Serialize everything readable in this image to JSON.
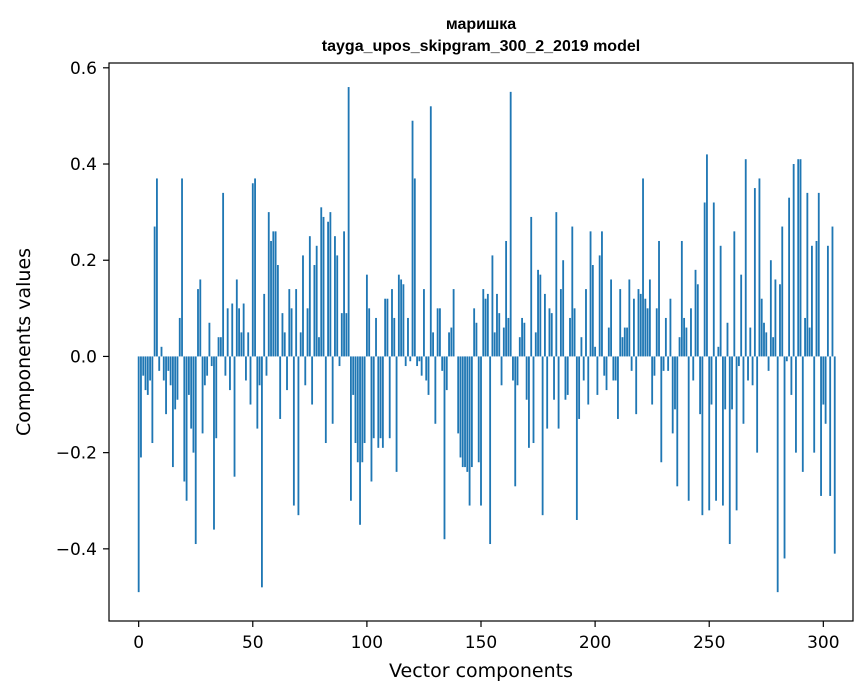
{
  "chart_data": {
    "type": "bar",
    "title_line1": "маришка",
    "title_line2": "tayga_upos_skipgram_300_2_2019 model",
    "xlabel": "Vector components",
    "ylabel": "Components values",
    "xlim": [
      -13,
      313
    ],
    "ylim": [
      -0.55,
      0.61
    ],
    "xticks": [
      0,
      50,
      100,
      150,
      200,
      250,
      300
    ],
    "xtick_labels": [
      "0",
      "50",
      "100",
      "150",
      "200",
      "250",
      "300"
    ],
    "yticks": [
      -0.4,
      -0.2,
      0.0,
      0.2,
      0.4,
      0.6
    ],
    "ytick_labels": [
      "−0.4",
      "−0.2",
      "0.0",
      "0.2",
      "0.4",
      "0.6"
    ],
    "bar_color": "#1f77b4",
    "grid": false,
    "values": [
      -0.49,
      -0.21,
      -0.04,
      -0.07,
      -0.08,
      -0.05,
      -0.18,
      0.27,
      0.37,
      -0.03,
      0.02,
      -0.05,
      -0.12,
      -0.03,
      -0.06,
      -0.23,
      -0.11,
      -0.09,
      0.08,
      0.37,
      -0.26,
      -0.3,
      -0.08,
      -0.15,
      -0.2,
      -0.39,
      0.14,
      0.16,
      -0.16,
      -0.06,
      -0.04,
      0.07,
      -0.02,
      -0.36,
      -0.17,
      0.04,
      0.04,
      0.34,
      -0.04,
      0.1,
      -0.07,
      0.11,
      -0.25,
      0.16,
      0.1,
      0.05,
      0.11,
      -0.05,
      0.05,
      -0.1,
      0.36,
      0.37,
      -0.15,
      -0.06,
      -0.48,
      0.13,
      -0.04,
      0.3,
      0.24,
      0.26,
      0.26,
      0.19,
      -0.13,
      0.09,
      0.05,
      -0.07,
      0.14,
      0.1,
      -0.31,
      0.14,
      -0.33,
      0.05,
      0.21,
      -0.06,
      0.1,
      0.25,
      -0.1,
      0.19,
      0.23,
      0.04,
      0.31,
      0.29,
      -0.18,
      0.28,
      0.3,
      -0.14,
      0.25,
      0.21,
      -0.02,
      0.09,
      0.26,
      0.09,
      0.56,
      -0.3,
      -0.08,
      -0.18,
      -0.22,
      -0.35,
      -0.22,
      -0.18,
      0.17,
      0.1,
      -0.26,
      -0.17,
      0.08,
      -0.19,
      -0.17,
      -0.19,
      0.12,
      0.12,
      -0.17,
      0.14,
      0.08,
      -0.24,
      0.17,
      0.16,
      0.15,
      -0.02,
      0.08,
      -0.01,
      0.49,
      0.37,
      -0.02,
      -0.01,
      -0.04,
      0.14,
      -0.05,
      -0.08,
      0.52,
      0.05,
      -0.14,
      0.1,
      0.1,
      -0.03,
      -0.38,
      -0.07,
      0.05,
      0.06,
      0.14,
      0.0,
      -0.16,
      -0.21,
      -0.23,
      -0.23,
      -0.24,
      -0.31,
      -0.23,
      0.1,
      0.07,
      -0.22,
      -0.31,
      0.14,
      0.12,
      0.13,
      -0.39,
      0.21,
      0.05,
      0.13,
      0.09,
      -0.06,
      0.06,
      0.24,
      0.08,
      0.55,
      -0.05,
      -0.27,
      -0.06,
      0.04,
      0.08,
      0.07,
      -0.09,
      -0.19,
      0.29,
      -0.18,
      0.05,
      0.18,
      0.17,
      -0.33,
      0.13,
      -0.15,
      0.1,
      0.09,
      -0.09,
      0.3,
      -0.15,
      0.14,
      0.2,
      -0.09,
      -0.08,
      0.08,
      0.27,
      0.1,
      -0.34,
      -0.13,
      0.04,
      -0.05,
      0.14,
      -0.1,
      0.26,
      0.19,
      0.02,
      -0.08,
      0.21,
      0.26,
      -0.04,
      -0.07,
      0.06,
      0.16,
      -0.05,
      -0.05,
      -0.13,
      0.14,
      0.04,
      0.06,
      0.06,
      0.16,
      -0.03,
      0.12,
      -0.12,
      0.14,
      0.13,
      0.37,
      0.12,
      0.1,
      0.16,
      -0.1,
      -0.04,
      0.1,
      0.24,
      -0.22,
      -0.03,
      0.08,
      -0.03,
      0.12,
      -0.16,
      -0.11,
      -0.27,
      0.04,
      0.24,
      0.08,
      0.06,
      -0.3,
      0.1,
      -0.05,
      0.18,
      0.15,
      -0.12,
      -0.33,
      0.32,
      0.42,
      -0.32,
      -0.1,
      0.32,
      -0.3,
      0.02,
      0.23,
      -0.31,
      -0.11,
      0.07,
      -0.39,
      -0.11,
      0.26,
      -0.32,
      -0.02,
      0.17,
      -0.14,
      0.41,
      -0.05,
      0.06,
      -0.06,
      0.35,
      -0.2,
      0.37,
      0.12,
      0.07,
      0.05,
      -0.03,
      0.2,
      0.04,
      0.16,
      -0.49,
      0.15,
      0.27,
      -0.42,
      -0.01,
      0.33,
      -0.08,
      0.4,
      -0.2,
      0.41,
      0.41,
      -0.24,
      0.08,
      0.34,
      0.06,
      0.23,
      -0.2,
      0.24,
      0.34,
      -0.29,
      -0.1,
      -0.14,
      0.23,
      -0.29,
      0.27,
      -0.41,
      0.0,
      0.0
    ]
  }
}
